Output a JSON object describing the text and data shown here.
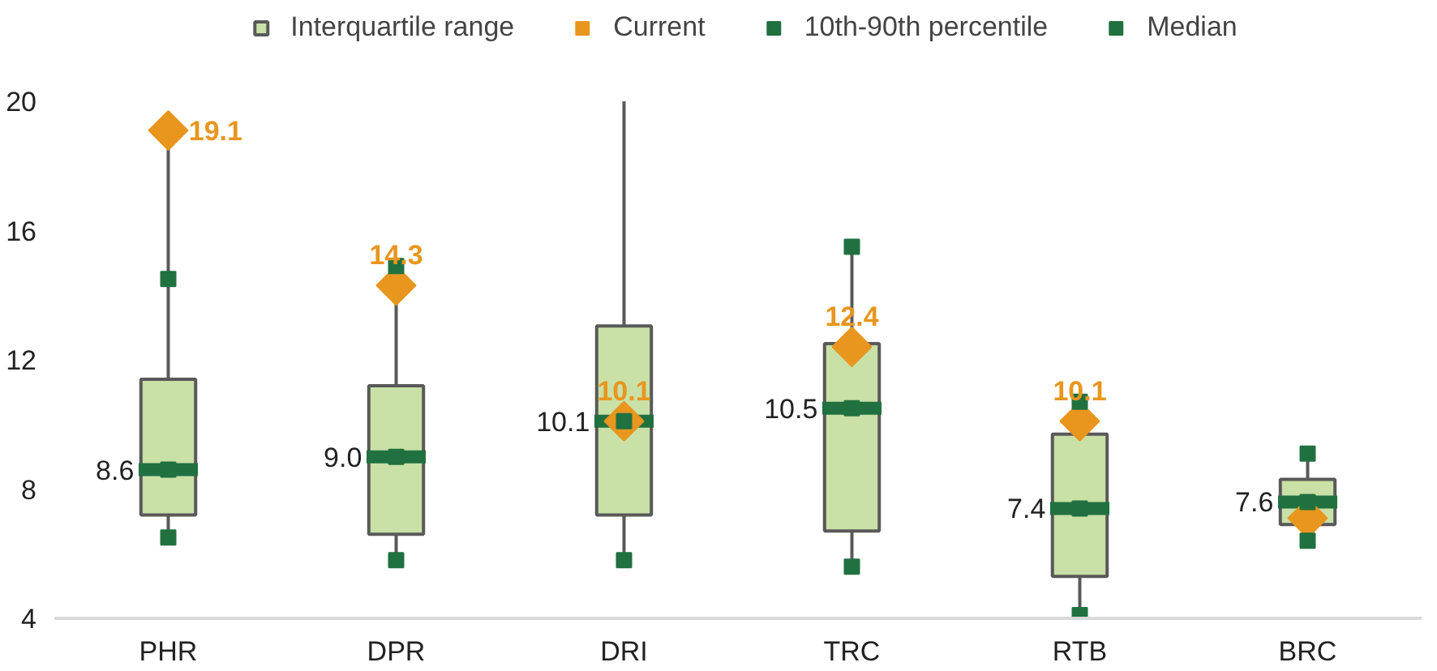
{
  "chart_data": {
    "type": "box",
    "categories": [
      "PHR",
      "DPR",
      "DRI",
      "TRC",
      "RTB",
      "BRC"
    ],
    "ylim": [
      4,
      20
    ],
    "yticks": [
      4,
      8,
      12,
      16,
      20
    ],
    "grid": false,
    "legend": "top",
    "series": [
      {
        "name": "Interquartile range",
        "type": "box",
        "color": "#c9e0a6",
        "boxes": [
          {
            "low": 6.5,
            "q1": 7.2,
            "median": 8.6,
            "q3": 11.4,
            "high": 19.1
          },
          {
            "low": 5.8,
            "q1": 6.6,
            "median": 9.0,
            "q3": 11.2,
            "high": 14.3
          },
          {
            "low": 5.8,
            "q1": 7.2,
            "median": 10.1,
            "q3": 13.05,
            "high": 20
          },
          {
            "low": 5.6,
            "q1": 6.7,
            "median": 10.5,
            "q3": 12.5,
            "high": 15.5
          },
          {
            "low": 4.1,
            "q1": 5.3,
            "median": 7.4,
            "q3": 9.7,
            "high": 10.7
          },
          {
            "low": 6.4,
            "q1": 6.9,
            "median": 7.6,
            "q3": 8.3,
            "high": 9.1
          }
        ]
      },
      {
        "name": "Current",
        "type": "scatter",
        "marker": "diamond",
        "color": "#e8961e",
        "values": [
          19.1,
          14.3,
          10.1,
          12.4,
          10.1,
          7.1
        ],
        "value_labels": [
          "19.1",
          "14.3",
          "10.1",
          "12.4",
          "10.1",
          null
        ]
      },
      {
        "name": "10th-90th percentile",
        "type": "scatter",
        "marker": "square",
        "color": "#217140",
        "values": [
          14.5,
          14.9,
          null,
          15.5,
          10.7,
          9.1
        ]
      },
      {
        "type": "scatter",
        "marker": "square",
        "color": "#217140",
        "values": [
          6.5,
          5.8,
          5.8,
          5.6,
          4.1,
          6.4
        ]
      },
      {
        "name": "Median",
        "type": "scatter",
        "marker": "square",
        "color": "#217140",
        "values": [
          8.6,
          9.0,
          10.1,
          10.5,
          7.4,
          7.6
        ],
        "value_labels": [
          "8.6",
          "9.0",
          "10.1",
          "10.5",
          "7.4",
          "7.6"
        ]
      }
    ]
  }
}
